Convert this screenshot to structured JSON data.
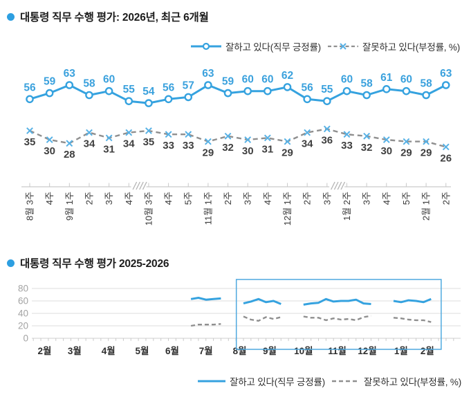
{
  "colors": {
    "positive": "#35a2df",
    "positive_label": "#3aa1dd",
    "negative_line": "#8f8f8f",
    "negative_marker": "#57b1e5",
    "negative_label": "#3f3f3f",
    "axis": "#c9c9c9",
    "grid": "#dcdcdc",
    "tick_label": "#a3a3a3",
    "month_label": "#2f2f2f",
    "category_label": "#3a3a3a",
    "box": "#4fa9df",
    "bullet": "#2d9fe1",
    "title": "#1c1c1c"
  },
  "chart_data": [
    {
      "id": "top",
      "type": "line",
      "title": "대통령 직무 수행 평가: 2026년, 최근 6개월",
      "legend_position": "top-right",
      "data_labels": true,
      "categories": [
        "8월 3주",
        "4주",
        "9월 1주",
        "2주",
        "3주",
        "4주",
        "10월 3주",
        "4주",
        "5주",
        "11월 1주",
        "2주",
        "3주",
        "4주",
        "12월 1주",
        "2주",
        "3주",
        "1월 2주",
        "3주",
        "4주",
        "5주",
        "2월 1주",
        "2주"
      ],
      "axis_breaks_after": [
        5,
        15
      ],
      "series": [
        {
          "name": "잘하고 있다(직무 긍정률)",
          "style": "solid",
          "marker": "circle",
          "values": [
            56,
            59,
            63,
            58,
            60,
            55,
            54,
            56,
            57,
            63,
            59,
            60,
            60,
            62,
            56,
            55,
            60,
            58,
            61,
            60,
            58,
            63
          ]
        },
        {
          "name": "잘못하고 있다(부정률, %)",
          "style": "dashed",
          "marker": "x",
          "values": [
            35,
            30,
            28,
            34,
            31,
            34,
            35,
            33,
            33,
            29,
            32,
            30,
            31,
            29,
            34,
            36,
            33,
            32,
            30,
            29,
            29,
            26
          ]
        }
      ]
    },
    {
      "id": "bottom",
      "type": "line",
      "title": "대통령 직무 수행 평가 2025-2026",
      "ylim": [
        0,
        80
      ],
      "y_ticks": [
        80,
        60,
        40,
        20,
        0
      ],
      "grid": true,
      "legend_position": "bottom-right",
      "months": [
        {
          "label": "2월",
          "weeks": 4
        },
        {
          "label": "3월",
          "weeks": 4
        },
        {
          "label": "4월",
          "weeks": 5
        },
        {
          "label": "5월",
          "weeks": 4
        },
        {
          "label": "6월",
          "weeks": 4
        },
        {
          "label": "7월",
          "weeks": 5
        },
        {
          "label": "8월",
          "weeks": 4
        },
        {
          "label": "9월",
          "weeks": 4
        },
        {
          "label": "10월",
          "weeks": 5
        },
        {
          "label": "11월",
          "weeks": 4
        },
        {
          "label": "12월",
          "weeks": 4
        },
        {
          "label": "1월",
          "weeks": 5
        },
        {
          "label": "2월",
          "weeks": 2
        }
      ],
      "highlight_weeks": [
        27.05,
        54.35
      ],
      "series": [
        {
          "name": "잘하고 있다(직무 긍정률)",
          "style": "solid",
          "values": [
            null,
            null,
            null,
            null,
            null,
            null,
            null,
            null,
            null,
            null,
            null,
            null,
            null,
            null,
            null,
            null,
            null,
            null,
            null,
            null,
            null,
            63,
            65,
            62,
            63,
            64,
            null,
            null,
            56,
            59,
            63,
            58,
            60,
            55,
            null,
            null,
            54,
            56,
            57,
            63,
            59,
            60,
            60,
            62,
            56,
            55,
            null,
            null,
            60,
            58,
            61,
            60,
            58,
            63
          ]
        },
        {
          "name": "잘못하고 있다(부정률, %)",
          "style": "dashed",
          "values": [
            null,
            null,
            null,
            null,
            null,
            null,
            null,
            null,
            null,
            null,
            null,
            null,
            null,
            null,
            null,
            null,
            null,
            null,
            null,
            null,
            null,
            20,
            22,
            22,
            22,
            23,
            null,
            null,
            35,
            30,
            28,
            34,
            31,
            34,
            null,
            null,
            35,
            33,
            33,
            29,
            32,
            30,
            31,
            29,
            34,
            36,
            null,
            null,
            33,
            32,
            30,
            29,
            29,
            26
          ]
        }
      ]
    }
  ]
}
